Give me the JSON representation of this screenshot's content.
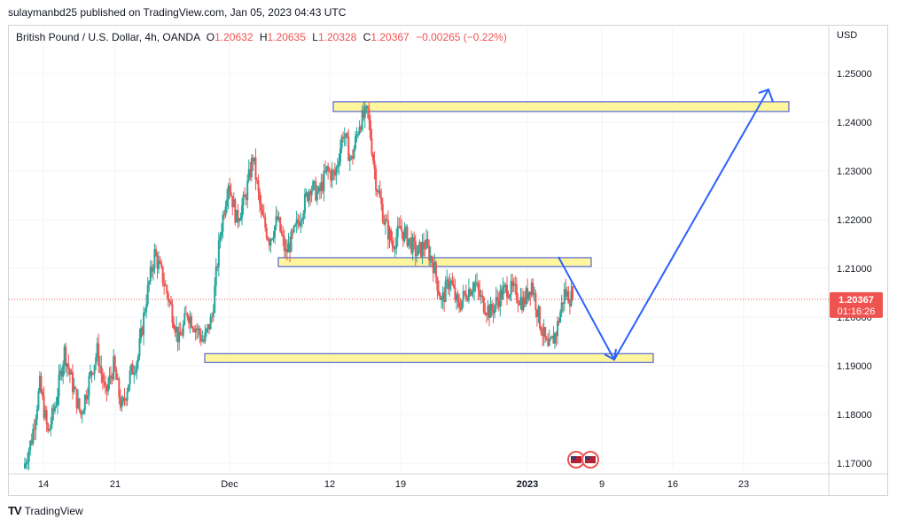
{
  "header": {
    "publisher": "sulaymanbd25 published on TradingView.com, Jan 05, 2023 04:43 UTC"
  },
  "legend": {
    "symbol": "British Pound / U.S. Dollar, 4h, OANDA",
    "o_label": "O",
    "o_value": "1.20632",
    "h_label": "H",
    "h_value": "1.20635",
    "l_label": "L",
    "l_value": "1.20328",
    "c_label": "C",
    "c_value": "1.20367",
    "change": "−0.00265 (−0.22%)"
  },
  "price_axis": {
    "currency": "USD",
    "ticks": [
      1.25,
      1.24,
      1.23,
      1.22,
      1.21,
      1.2,
      1.19,
      1.18,
      1.17
    ],
    "tick_labels": [
      "1.25000",
      "1.24000",
      "1.23000",
      "1.22000",
      "1.21000",
      "1.20000",
      "1.19000",
      "1.18000",
      "1.17000"
    ],
    "last_price": "1.20367",
    "countdown": "01:16:26"
  },
  "time_axis": {
    "labels": [
      "14",
      "21",
      "Dec",
      "12",
      "19",
      "2023",
      "9",
      "16",
      "23"
    ]
  },
  "footer": {
    "brand": "TradingView",
    "logo": "TV"
  },
  "colors": {
    "up": "#26a69a",
    "down": "#ef5350",
    "zone_fill": "#fff59d",
    "zone_border": "#3249d0",
    "arrow": "#2962ff",
    "price_label_bg": "#ef5350"
  },
  "chart_data": {
    "type": "candlestick",
    "symbol": "GBPUSD",
    "timeframe": "4h",
    "ylim": [
      1.167,
      1.259
    ],
    "zones": [
      {
        "from": 1.2422,
        "to": 1.2442
      },
      {
        "from": 1.2107,
        "to": 1.2122
      },
      {
        "from": 1.1908,
        "to": 1.1925
      }
    ],
    "close_path": [
      1.169,
      1.175,
      1.186,
      1.176,
      1.183,
      1.193,
      1.186,
      1.18,
      1.187,
      1.193,
      1.184,
      1.19,
      1.181,
      1.188,
      1.192,
      1.204,
      1.213,
      1.208,
      1.202,
      1.195,
      1.201,
      1.198,
      1.195,
      1.2,
      1.217,
      1.228,
      1.22,
      1.224,
      1.233,
      1.221,
      1.216,
      1.22,
      1.213,
      1.217,
      1.222,
      1.227,
      1.225,
      1.23,
      1.229,
      1.238,
      1.232,
      1.24,
      1.242,
      1.228,
      1.22,
      1.215,
      1.218,
      1.216,
      1.213,
      1.215,
      1.211,
      1.203,
      1.208,
      1.202,
      1.205,
      1.207,
      1.203,
      1.201,
      1.204,
      1.206,
      1.205,
      1.203,
      1.207,
      1.199,
      1.193,
      1.197,
      1.205,
      1.2037
    ]
  }
}
